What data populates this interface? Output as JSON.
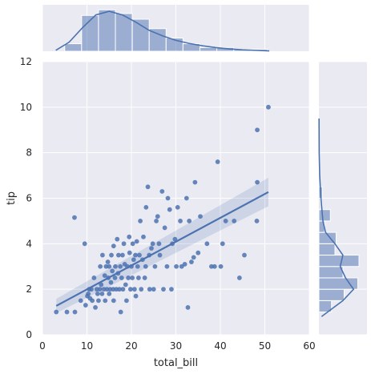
{
  "chart_data": {
    "type": "scatter",
    "title": "",
    "xlabel": "total_bill",
    "ylabel": "tip",
    "xlim": [
      0,
      60
    ],
    "ylim": [
      0,
      12
    ],
    "x_ticks": [
      "0",
      "10",
      "20",
      "30",
      "40",
      "50",
      "60"
    ],
    "y_ticks": [
      "0",
      "2",
      "4",
      "6",
      "8",
      "10",
      "12"
    ],
    "grid": true,
    "colors": {
      "primary": "#4c72b0",
      "background": "#eaeaf2",
      "grid": "#ffffff",
      "text": "#262626"
    },
    "points": [
      [
        3.1,
        1.0
      ],
      [
        5.5,
        1.0
      ],
      [
        7.3,
        1.0
      ],
      [
        7.2,
        5.15
      ],
      [
        8.6,
        1.5
      ],
      [
        9.5,
        4.0
      ],
      [
        9.7,
        1.3
      ],
      [
        10.1,
        1.7
      ],
      [
        10.3,
        1.8
      ],
      [
        10.5,
        2.0
      ],
      [
        10.7,
        1.6
      ],
      [
        11.0,
        2.0
      ],
      [
        11.2,
        1.5
      ],
      [
        11.6,
        2.5
      ],
      [
        11.9,
        1.2
      ],
      [
        12.2,
        2.0
      ],
      [
        12.4,
        1.8
      ],
      [
        12.6,
        1.5
      ],
      [
        12.9,
        2.0
      ],
      [
        13.0,
        3.0
      ],
      [
        13.2,
        2.2
      ],
      [
        13.4,
        1.8
      ],
      [
        13.5,
        3.5
      ],
      [
        13.8,
        2.0
      ],
      [
        14.0,
        2.6
      ],
      [
        14.1,
        1.5
      ],
      [
        14.3,
        3.0
      ],
      [
        14.5,
        2.0
      ],
      [
        14.7,
        3.2
      ],
      [
        14.8,
        2.5
      ],
      [
        15.0,
        1.8
      ],
      [
        15.0,
        3.0
      ],
      [
        15.2,
        2.0
      ],
      [
        15.4,
        2.3
      ],
      [
        15.5,
        3.5
      ],
      [
        15.7,
        2.8
      ],
      [
        15.9,
        2.0
      ],
      [
        16.0,
        1.5
      ],
      [
        16.0,
        3.9
      ],
      [
        16.3,
        2.5
      ],
      [
        16.4,
        3.0
      ],
      [
        16.6,
        2.0
      ],
      [
        16.8,
        4.2
      ],
      [
        17.0,
        2.7
      ],
      [
        17.1,
        3.5
      ],
      [
        17.3,
        2.0
      ],
      [
        17.5,
        3.0
      ],
      [
        17.6,
        1.0
      ],
      [
        17.8,
        2.5
      ],
      [
        18.0,
        3.5
      ],
      [
        18.1,
        2.0
      ],
      [
        18.3,
        4.0
      ],
      [
        18.5,
        3.1
      ],
      [
        18.7,
        2.2
      ],
      [
        18.9,
        1.5
      ],
      [
        19.1,
        3.0
      ],
      [
        19.3,
        2.5
      ],
      [
        19.5,
        4.3
      ],
      [
        19.6,
        3.6
      ],
      [
        19.8,
        2.0
      ],
      [
        20.0,
        3.0
      ],
      [
        20.2,
        2.5
      ],
      [
        20.3,
        4.0
      ],
      [
        20.5,
        3.3
      ],
      [
        20.7,
        2.0
      ],
      [
        20.9,
        3.5
      ],
      [
        21.0,
        1.7
      ],
      [
        21.2,
        4.1
      ],
      [
        21.4,
        3.0
      ],
      [
        21.6,
        2.5
      ],
      [
        21.8,
        3.5
      ],
      [
        22.0,
        5.0
      ],
      [
        22.2,
        2.0
      ],
      [
        22.5,
        3.3
      ],
      [
        22.7,
        4.3
      ],
      [
        23.0,
        2.5
      ],
      [
        23.2,
        3.0
      ],
      [
        23.3,
        5.6
      ],
      [
        23.7,
        6.5
      ],
      [
        24.0,
        3.5
      ],
      [
        24.1,
        2.0
      ],
      [
        24.5,
        3.8
      ],
      [
        24.8,
        4.0
      ],
      [
        25.0,
        2.0
      ],
      [
        25.3,
        3.0
      ],
      [
        25.6,
        5.0
      ],
      [
        25.9,
        5.2
      ],
      [
        26.2,
        4.0
      ],
      [
        26.4,
        3.5
      ],
      [
        26.9,
        6.3
      ],
      [
        27.2,
        2.0
      ],
      [
        27.5,
        4.7
      ],
      [
        28.0,
        3.0
      ],
      [
        28.2,
        6.0
      ],
      [
        28.6,
        5.5
      ],
      [
        29.0,
        2.0
      ],
      [
        29.2,
        4.0
      ],
      [
        29.8,
        4.2
      ],
      [
        30.1,
        3.0
      ],
      [
        30.4,
        5.6
      ],
      [
        31.0,
        5.0
      ],
      [
        31.3,
        3.0
      ],
      [
        32.0,
        3.1
      ],
      [
        32.4,
        6.0
      ],
      [
        32.7,
        1.2
      ],
      [
        33.0,
        5.0
      ],
      [
        33.5,
        3.2
      ],
      [
        34.0,
        3.4
      ],
      [
        34.3,
        6.7
      ],
      [
        35.0,
        3.6
      ],
      [
        35.5,
        5.2
      ],
      [
        37.0,
        4.0
      ],
      [
        38.0,
        3.0
      ],
      [
        38.7,
        3.0
      ],
      [
        39.4,
        7.6
      ],
      [
        40.1,
        3.0
      ],
      [
        40.5,
        4.0
      ],
      [
        41.2,
        5.0
      ],
      [
        43.1,
        5.0
      ],
      [
        44.3,
        2.5
      ],
      [
        45.4,
        3.5
      ],
      [
        48.2,
        5.0
      ],
      [
        48.3,
        6.7
      ],
      [
        48.3,
        9.0
      ],
      [
        50.8,
        10.0
      ]
    ],
    "regression": {
      "x": [
        3.1,
        50.8
      ],
      "y": [
        1.27,
        6.27
      ],
      "ci_low": [
        0.95,
        5.65
      ],
      "ci_high": [
        1.58,
        6.9
      ]
    },
    "marginal_x_hist": {
      "bin_edges": [
        5,
        8.8,
        12.6,
        16.4,
        20.2,
        24.0,
        27.8,
        31.6,
        35.4,
        39.2,
        43.0,
        46.8,
        50.6
      ],
      "counts": [
        4,
        19,
        22,
        20,
        17,
        12,
        7,
        4,
        2,
        2,
        1,
        1
      ],
      "kde_x": [
        3,
        6,
        9,
        12,
        15,
        18,
        21,
        24,
        27,
        30,
        33,
        36,
        39,
        42,
        45,
        48,
        51
      ],
      "kde_y": [
        0.5,
        5,
        13,
        20,
        22,
        20,
        16,
        11.5,
        8.5,
        6,
        4.3,
        3,
        2,
        1.3,
        0.8,
        0.5,
        0.2
      ]
    },
    "marginal_y_hist": {
      "bin_edges": [
        1.0,
        1.5,
        2.0,
        2.5,
        3.0,
        3.5,
        4.0,
        4.5,
        5.0,
        5.5,
        6.0,
        6.5
      ],
      "counts": [
        11,
        22,
        34,
        21,
        35,
        14,
        15,
        5,
        10,
        1,
        3
      ],
      "kde_y": [
        0.8,
        1.5,
        2.0,
        2.5,
        3.0,
        3.5,
        4.0,
        4.5,
        5.0,
        6.0,
        7.0,
        8.0,
        9.5
      ],
      "kde_x": [
        2,
        18,
        26,
        20,
        16,
        18,
        12,
        5,
        3,
        1.5,
        0.6,
        0.2,
        0.1
      ]
    }
  }
}
